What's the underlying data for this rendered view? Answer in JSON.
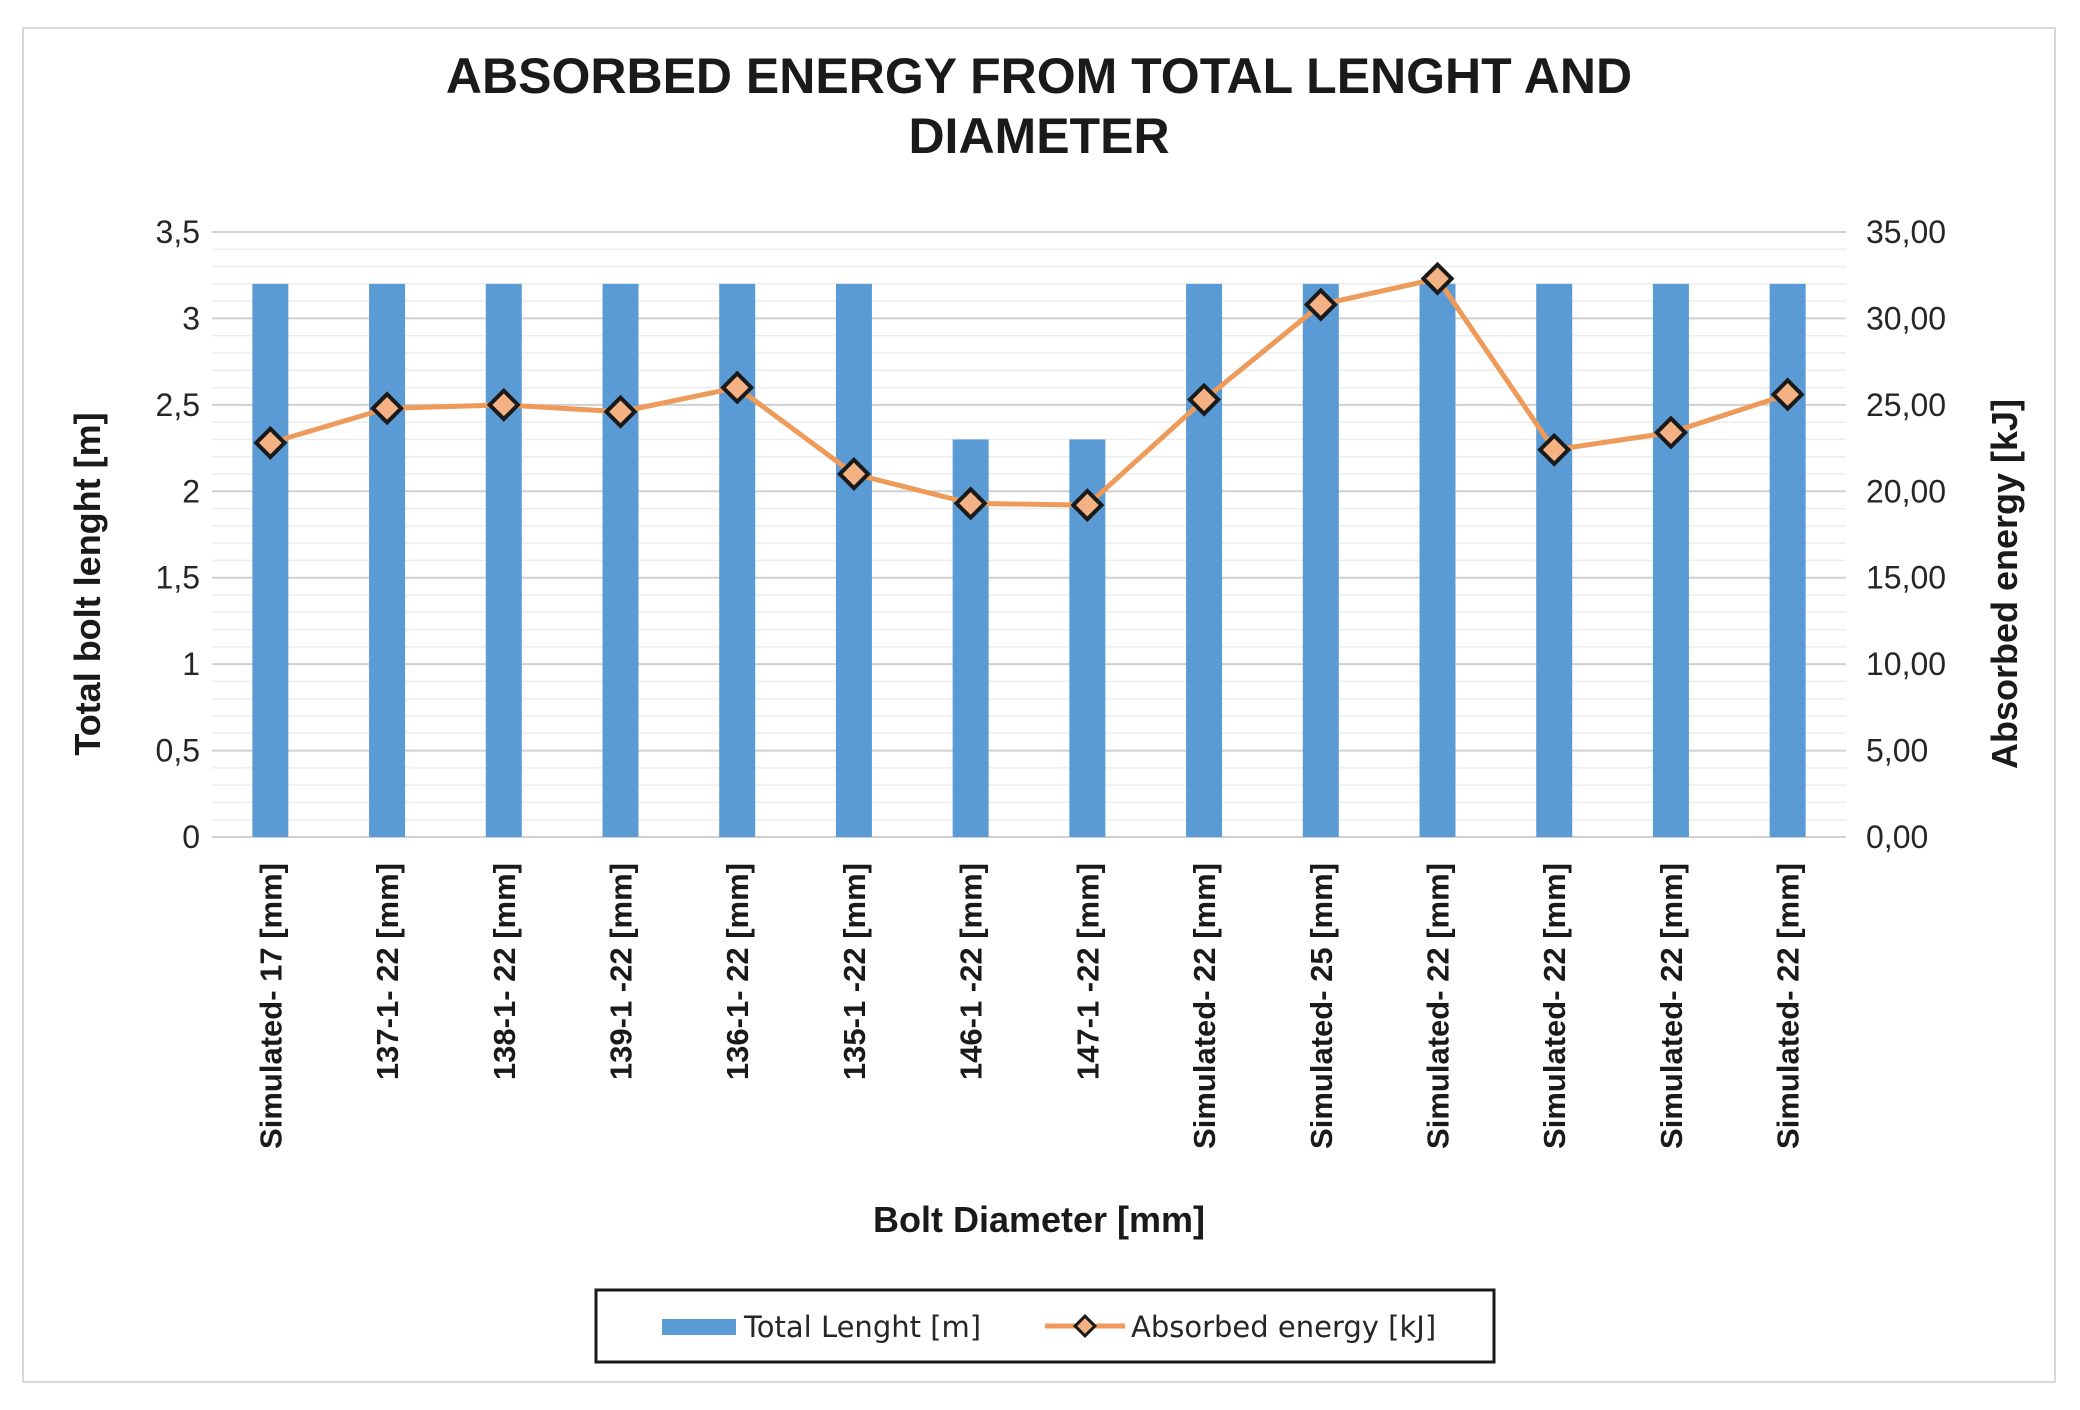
{
  "chart_data": {
    "type": "bar+line",
    "title_lines": [
      "ABSORBED ENERGY FROM TOTAL LENGHT AND",
      "DIAMETER"
    ],
    "xlabel": "Bolt Diameter [mm]",
    "ylabel_left": "Total bolt lenght [m]",
    "ylabel_right": "Absorbed energy  [kJ]",
    "ylim_left": [
      0,
      3.5
    ],
    "ylim_right": [
      0,
      35
    ],
    "left_ticks": [
      "0",
      "0,5",
      "1",
      "1,5",
      "2",
      "2,5",
      "3",
      "3,5"
    ],
    "right_ticks": [
      "0,00",
      "5,00",
      "10,00",
      "15,00",
      "20,00",
      "25,00",
      "30,00",
      "35,00"
    ],
    "categories": [
      "Simulated- 17 [mm]",
      "137-1- 22 [mm]",
      "138-1- 22 [mm]",
      "139-1 -22 [mm]",
      "136-1- 22 [mm]",
      "135-1 -22 [mm]",
      "146-1 -22 [mm]",
      "147-1 -22 [mm]",
      "Simulated- 22 [mm]",
      "Simulated- 25 [mm]",
      "Simulated- 22 [mm]",
      "Simulated- 22 [mm]",
      "Simulated- 22 [mm]",
      "Simulated- 22 [mm]"
    ],
    "series": [
      {
        "name": "Total Lenght  [m]",
        "type": "bar",
        "axis": "left",
        "color": "#5b9bd5",
        "values": [
          3.2,
          3.2,
          3.2,
          3.2,
          3.2,
          3.2,
          2.3,
          2.3,
          3.2,
          3.2,
          3.2,
          3.2,
          3.2,
          3.2
        ]
      },
      {
        "name": "Absorbed energy  [kJ]",
        "type": "line",
        "axis": "right",
        "color": "#ed9a5a",
        "marker_fill": "#f4b183",
        "values": [
          22.8,
          24.8,
          25.0,
          24.6,
          26.0,
          21.0,
          19.3,
          19.2,
          25.3,
          30.8,
          32.3,
          22.4,
          23.4,
          25.6
        ]
      }
    ],
    "legend": "bottom",
    "grid": true
  }
}
